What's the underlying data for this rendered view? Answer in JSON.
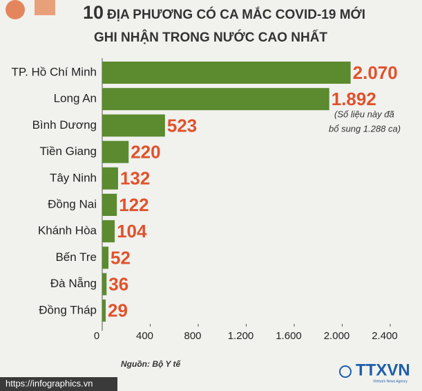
{
  "chart_data": {
    "type": "hbar",
    "title_lines": [
      "10",
      "ĐỊA PHƯƠNG CÓ CA MẮC COVID-19 MỚI",
      "GHI NHẬN TRONG NƯỚC CAO NHẤT"
    ],
    "categories": [
      "TP. Hồ Chí Minh",
      "Long An",
      "Bình Dương",
      "Tiền Giang",
      "Tây Ninh",
      "Đồng Nai",
      "Khánh Hòa",
      "Bến Tre",
      "Đà Nẵng",
      "Đồng Tháp"
    ],
    "values": [
      2070,
      1892,
      523,
      220,
      132,
      122,
      104,
      52,
      36,
      29
    ],
    "value_labels": [
      "2.070",
      "1.892",
      "523",
      "220",
      "132",
      "122",
      "104",
      "52",
      "36",
      "29"
    ],
    "color": "#5b8a2f",
    "label_color": "#e0522b",
    "xlim": [
      0,
      2400
    ],
    "xticks": [
      0,
      400,
      800,
      {
        "value": 1200,
        "label": "1.200"
      },
      {
        "value": 1600,
        "label": "1.600"
      },
      {
        "value": 2000,
        "label": "2.000"
      },
      {
        "value": 2400,
        "label": "2.400"
      }
    ],
    "annotation": [
      "(Số liệu này đã",
      "bổ sung 1.288 ca)"
    ],
    "source": "Nguồn: Bộ Y tế"
  },
  "footer": {
    "url": "https://infographics.vn",
    "logo": "TTXVN",
    "logo_sub": "Vietnam News Agency"
  }
}
